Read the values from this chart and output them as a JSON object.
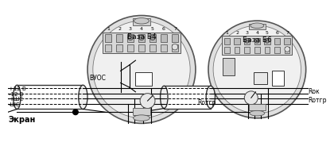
{
  "bg_color": "#ffffff",
  "c1x": 0.305,
  "c1y": 0.565,
  "c1r": 0.3,
  "c2x": 0.72,
  "c2y": 0.565,
  "c2r": 0.27,
  "c1_label": "База Б4",
  "c2_label": "База Б6",
  "wire_labels": [
    "+12 В",
    "-12 В",
    "+ШС",
    "-ШС"
  ],
  "ekran_label": "Экран",
  "vuos_label": "ВУОС",
  "rotgr1_label": "Rотгр",
  "rok_label": "Rок",
  "rotgr2_label": "Rотгр",
  "lc": "#000000"
}
